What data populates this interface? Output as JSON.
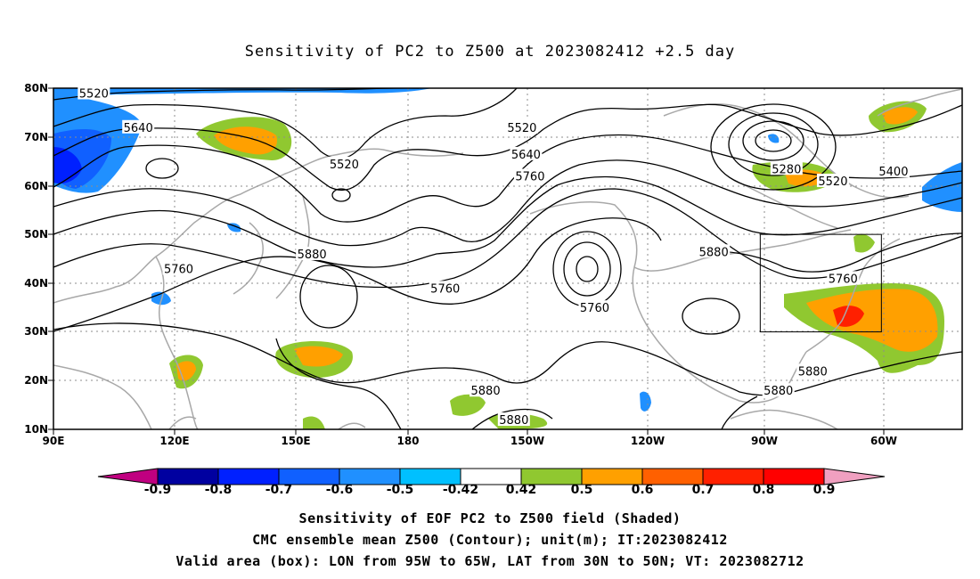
{
  "title": "Sensitivity of PC2 to Z500 at 2023082412 +2.5 day",
  "lat_labels": [
    "80N",
    "70N",
    "60N",
    "50N",
    "40N",
    "30N",
    "20N",
    "10N"
  ],
  "lon_labels": [
    "90E",
    "120E",
    "150E",
    "180",
    "150W",
    "120W",
    "90W",
    "60W"
  ],
  "contour_labels": [
    {
      "text": "5520",
      "lon": 100,
      "lat": 79
    },
    {
      "text": "5640",
      "lon": 111,
      "lat": 72
    },
    {
      "text": "5520",
      "lon": 162,
      "lat": 64.5
    },
    {
      "text": "5880",
      "lon": 154,
      "lat": 46
    },
    {
      "text": "5760",
      "lon": 121,
      "lat": 43
    },
    {
      "text": "5760",
      "lon": -173,
      "lat": 39
    },
    {
      "text": "5520",
      "lon": -154,
      "lat": 72
    },
    {
      "text": "5640",
      "lon": -153,
      "lat": 66.5
    },
    {
      "text": "5760",
      "lon": -152,
      "lat": 62
    },
    {
      "text": "5760",
      "lon": -136,
      "lat": 35
    },
    {
      "text": "5880",
      "lon": -106.5,
      "lat": 46.5
    },
    {
      "text": "5280",
      "lon": -88.5,
      "lat": 63.5
    },
    {
      "text": "5520",
      "lon": -77,
      "lat": 61
    },
    {
      "text": "5400",
      "lon": -62,
      "lat": 63
    },
    {
      "text": "5760",
      "lon": -74.5,
      "lat": 41
    },
    {
      "text": "5880",
      "lon": -163,
      "lat": 18
    },
    {
      "text": "5880",
      "lon": -156,
      "lat": 12
    },
    {
      "text": "5880",
      "lon": -82,
      "lat": 22
    },
    {
      "text": "5880",
      "lon": -90.5,
      "lat": 18
    }
  ],
  "colorbar": {
    "labels": [
      "-0.9",
      "-0.8",
      "-0.7",
      "-0.6",
      "-0.5",
      "-0.42",
      "0.42",
      "0.5",
      "0.6",
      "0.7",
      "0.8",
      "0.9"
    ],
    "colors": [
      "#c00080",
      "#0000a0",
      "#0020ff",
      "#1060ff",
      "#2090ff",
      "#00c0ff",
      "#ffffff",
      "#90c830",
      "#ffa000",
      "#ff6000",
      "#ff2000",
      "#ff0000",
      "#f0a0c0"
    ]
  },
  "valid_box": {
    "lon_min": -95,
    "lon_max": -65,
    "lat_min": 30,
    "lat_max": 50
  },
  "footer": [
    "Sensitivity of EOF PC2 to Z500 field (Shaded)",
    "CMC ensemble mean Z500 (Contour); unit(m); IT:2023082412",
    "Valid area (box): LON from 95W to 65W, LAT from 30N to 50N; VT: 2023082712"
  ]
}
